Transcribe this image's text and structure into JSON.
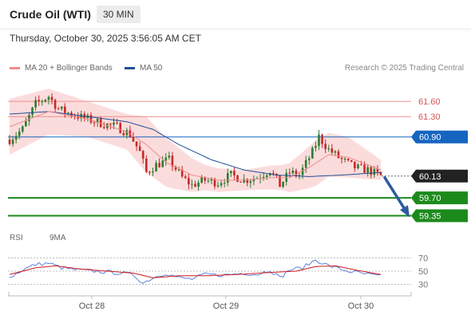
{
  "header": {
    "instrument": "Crude Oil (WTI)",
    "timeframe": "30 MIN",
    "datetime": "Thursday, October 30, 2025 3:56:05 AM CET"
  },
  "legend": {
    "ma20_label": "MA 20 + Bollinger Bands",
    "ma50_label": "MA 50",
    "credit": "Research © 2025 Trading Central",
    "rsi_label": "RSI",
    "rsi_ma_label": "9MA"
  },
  "colors": {
    "ma20": "#f08b8b",
    "ma50": "#1f4e96",
    "band_fill": "#fbdcdc",
    "up_candle": "#2e7d32",
    "down_candle": "#c62828",
    "resistance": "#f08b8b",
    "pivot": "#1565c0",
    "support": "#1b8a1b",
    "rsi": "#5b7fe0",
    "rsi_ma": "#d11a1a",
    "arrow": "#2d5aa0"
  },
  "chart_data": {
    "type": "candlestick",
    "x_ticks": [
      "Oct 28",
      "Oct 29",
      "Oct 30"
    ],
    "ylim": [
      59.2,
      61.9
    ],
    "levels": [
      {
        "value": 61.6,
        "label": "61.60",
        "kind": "resistance"
      },
      {
        "value": 61.3,
        "label": "61.30",
        "kind": "resistance"
      },
      {
        "value": 60.9,
        "label": "60.90",
        "kind": "pivot"
      },
      {
        "value": 59.7,
        "label": "59.70",
        "kind": "support"
      },
      {
        "value": 59.35,
        "label": "59.35",
        "kind": "support"
      }
    ],
    "last_price": {
      "value": 60.13,
      "label": "60.13"
    },
    "projection": {
      "from": 60.1,
      "to": 59.4
    },
    "close_anchors": [
      [
        0,
        60.85
      ],
      [
        4,
        61.05
      ],
      [
        8,
        61.55
      ],
      [
        12,
        61.7
      ],
      [
        15,
        61.45
      ],
      [
        19,
        61.35
      ],
      [
        24,
        61.25
      ],
      [
        29,
        61.15
      ],
      [
        33,
        61.1
      ],
      [
        37,
        60.95
      ],
      [
        40,
        60.6
      ],
      [
        42,
        60.2
      ],
      [
        45,
        60.35
      ],
      [
        49,
        60.45
      ],
      [
        53,
        60.1
      ],
      [
        56,
        59.95
      ],
      [
        60,
        60.05
      ],
      [
        64,
        60.0
      ],
      [
        68,
        60.15
      ],
      [
        72,
        60.05
      ],
      [
        76,
        60.1
      ],
      [
        80,
        60.25
      ],
      [
        83,
        59.95
      ],
      [
        86,
        60.2
      ],
      [
        89,
        60.15
      ],
      [
        93,
        60.6
      ],
      [
        95,
        60.9
      ],
      [
        98,
        60.65
      ],
      [
        102,
        60.45
      ],
      [
        106,
        60.3
      ],
      [
        110,
        60.25
      ],
      [
        114,
        60.13
      ]
    ],
    "ma20_anchors": [
      [
        0,
        61.1
      ],
      [
        12,
        61.4
      ],
      [
        24,
        61.25
      ],
      [
        36,
        61.0
      ],
      [
        42,
        60.75
      ],
      [
        48,
        60.4
      ],
      [
        56,
        60.15
      ],
      [
        64,
        60.05
      ],
      [
        72,
        60.05
      ],
      [
        80,
        60.1
      ],
      [
        86,
        60.1
      ],
      [
        92,
        60.3
      ],
      [
        98,
        60.55
      ],
      [
        104,
        60.5
      ],
      [
        110,
        60.35
      ],
      [
        114,
        60.25
      ]
    ],
    "band_width_anchors": [
      [
        0,
        0.55
      ],
      [
        12,
        0.45
      ],
      [
        24,
        0.35
      ],
      [
        36,
        0.35
      ],
      [
        42,
        0.55
      ],
      [
        50,
        0.45
      ],
      [
        60,
        0.25
      ],
      [
        72,
        0.2
      ],
      [
        84,
        0.25
      ],
      [
        94,
        0.45
      ],
      [
        104,
        0.4
      ],
      [
        114,
        0.2
      ]
    ],
    "ma50_anchors": [
      [
        0,
        61.35
      ],
      [
        12,
        61.4
      ],
      [
        24,
        61.3
      ],
      [
        36,
        61.2
      ],
      [
        44,
        61.05
      ],
      [
        52,
        60.75
      ],
      [
        62,
        60.45
      ],
      [
        72,
        60.25
      ],
      [
        82,
        60.15
      ],
      [
        92,
        60.12
      ],
      [
        102,
        60.15
      ],
      [
        114,
        60.2
      ]
    ],
    "rsi_ylim": [
      20,
      80
    ],
    "rsi_levels": [
      70,
      50,
      30
    ],
    "rsi_anchors": [
      [
        0,
        40
      ],
      [
        4,
        52
      ],
      [
        8,
        60
      ],
      [
        12,
        62
      ],
      [
        16,
        55
      ],
      [
        20,
        52
      ],
      [
        26,
        50
      ],
      [
        32,
        48
      ],
      [
        38,
        45
      ],
      [
        41,
        32
      ],
      [
        44,
        40
      ],
      [
        48,
        47
      ],
      [
        52,
        40
      ],
      [
        56,
        38
      ],
      [
        60,
        45
      ],
      [
        66,
        44
      ],
      [
        72,
        47
      ],
      [
        76,
        45
      ],
      [
        80,
        52
      ],
      [
        83,
        40
      ],
      [
        86,
        52
      ],
      [
        90,
        55
      ],
      [
        94,
        67
      ],
      [
        98,
        58
      ],
      [
        104,
        50
      ],
      [
        110,
        45
      ],
      [
        114,
        42
      ]
    ],
    "rsi_ma_anchors": [
      [
        0,
        45
      ],
      [
        8,
        55
      ],
      [
        14,
        58
      ],
      [
        22,
        53
      ],
      [
        30,
        50
      ],
      [
        38,
        47
      ],
      [
        44,
        40
      ],
      [
        52,
        43
      ],
      [
        60,
        43
      ],
      [
        70,
        45
      ],
      [
        80,
        48
      ],
      [
        88,
        50
      ],
      [
        94,
        57
      ],
      [
        100,
        58
      ],
      [
        106,
        52
      ],
      [
        114,
        45
      ]
    ]
  }
}
